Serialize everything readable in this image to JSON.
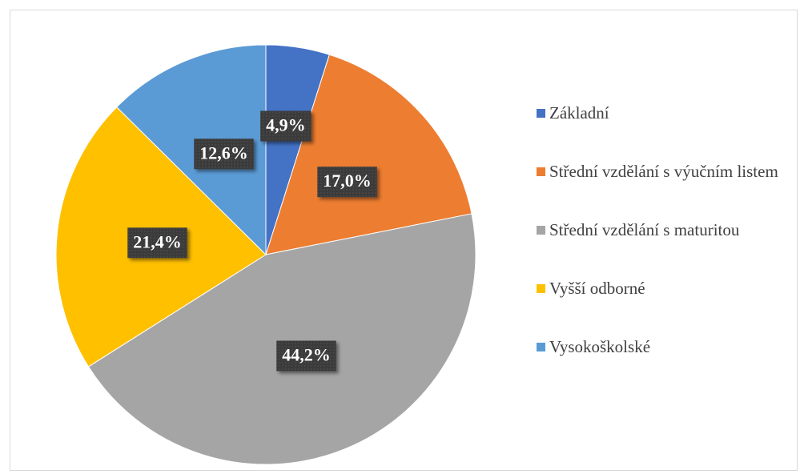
{
  "chart_data": {
    "type": "pie",
    "categories": [
      "Základní",
      "Střední vzdělání s výučním listem",
      "Střední vzdělání s maturitou",
      "Vyšší odborné",
      "Vysokoškolské"
    ],
    "values": [
      4.9,
      17.0,
      44.2,
      21.4,
      12.6
    ],
    "value_labels": [
      "4,9%",
      "17,0%",
      "44,2%",
      "21,4%",
      "12,6%"
    ],
    "colors": [
      "#4472c4",
      "#ed7d31",
      "#a5a5a5",
      "#ffc000",
      "#5b9bd5"
    ],
    "legend": "right"
  }
}
